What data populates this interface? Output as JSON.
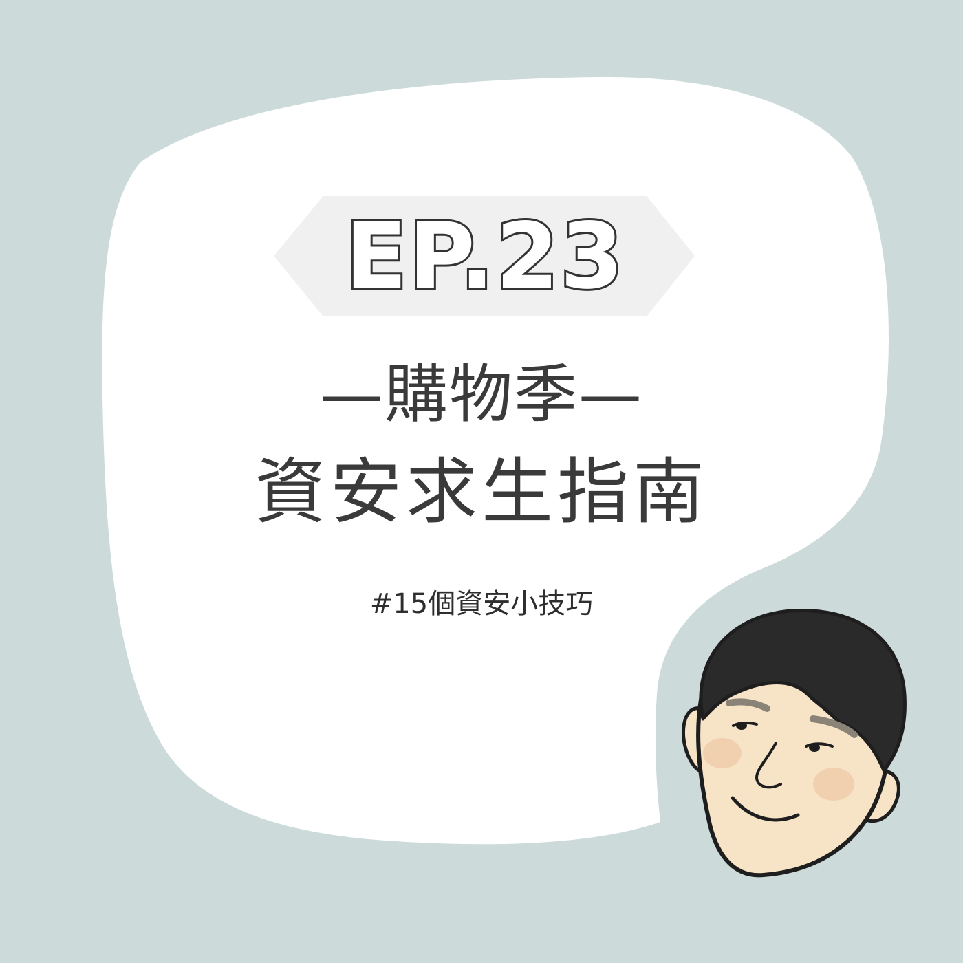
{
  "episode": {
    "label": "EP.23"
  },
  "title": {
    "line1": "—購物季—",
    "line2": "資安求生指南"
  },
  "hashtag": "#15個資安小技巧",
  "colors": {
    "background": "#ccdada",
    "bubble": "#ffffff",
    "banner": "#f0f0f0",
    "text": "#3a3a3a",
    "hair": "#2a2a2a",
    "skin": "#f7e3c6"
  },
  "illustration": {
    "icon": "cartoon-man-face-icon"
  }
}
